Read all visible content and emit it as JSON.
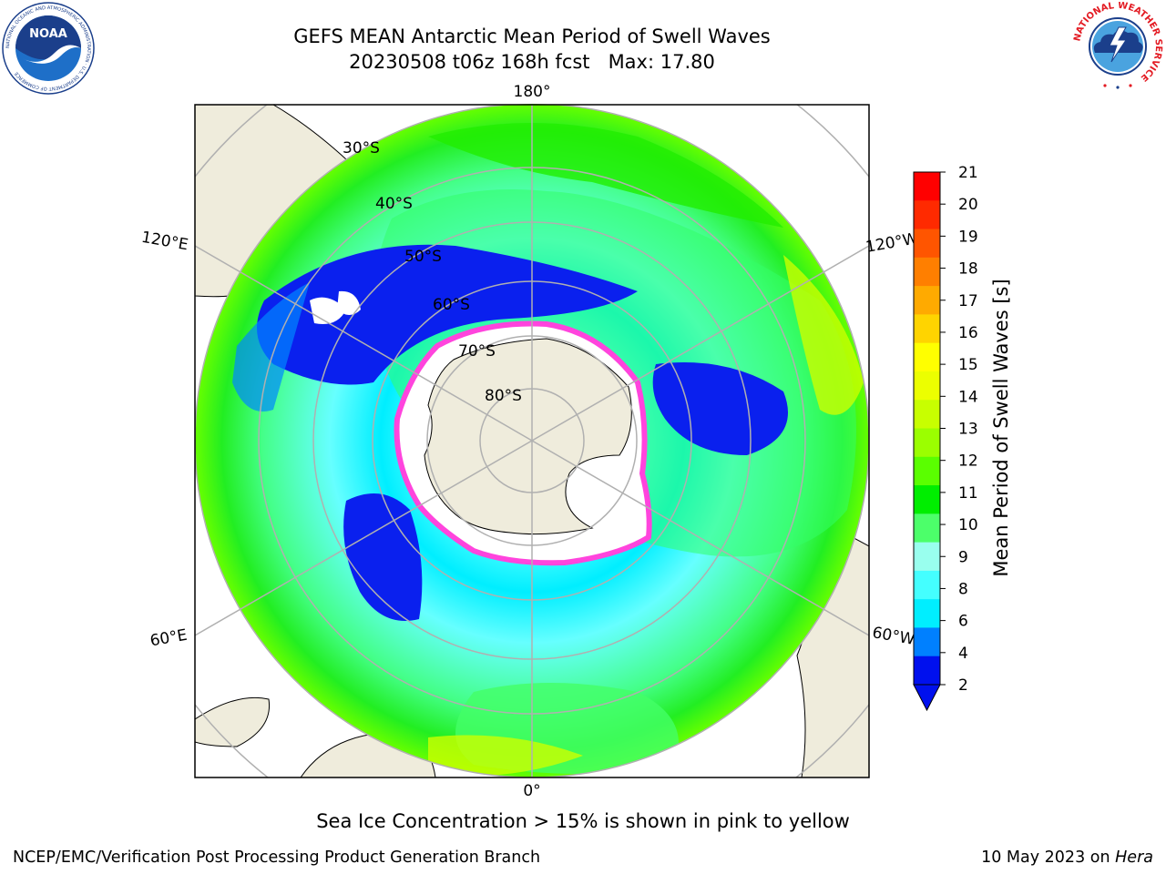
{
  "header": {
    "title_line1": "GEFS MEAN Antarctic Mean Period of Swell Waves",
    "title_line2": "20230508 t06z 168h fcst   Max: 17.80"
  },
  "logos": {
    "left": {
      "name": "noaa-logo",
      "text": "NOAA",
      "ring_text": "NATIONAL OCEANIC AND ATMOSPHERIC ADMINISTRATION · U.S. DEPARTMENT OF COMMERCE"
    },
    "right": {
      "name": "nws-logo",
      "ring_text": "NATIONAL WEATHER SERVICE"
    }
  },
  "map": {
    "projection": "south-polar-stereographic",
    "longitude_labels": {
      "top": "180°",
      "upper_left": "120°E",
      "upper_right": "120°W",
      "lower_left": "60°E",
      "lower_right": "60°W",
      "bottom": "0°"
    },
    "latitude_labels": [
      "30°S",
      "40°S",
      "50°S",
      "60°S",
      "70°S",
      "80°S"
    ]
  },
  "colorbar": {
    "label": "Mean Period of Swell Waves [s]",
    "ticks": [
      "21",
      "20",
      "19",
      "18",
      "17",
      "16",
      "15",
      "14",
      "13",
      "12",
      "11",
      "10",
      "9",
      "8",
      "6",
      "4",
      "2"
    ],
    "colors": [
      "#ff0000",
      "#ff2a00",
      "#ff5500",
      "#ff7f00",
      "#ffaa00",
      "#ffd400",
      "#ffff00",
      "#ecff00",
      "#c8ff00",
      "#9bff00",
      "#5aff00",
      "#00ee00",
      "#4cff6a",
      "#99ffee",
      "#44ffff",
      "#00eeff",
      "#0080ff",
      "#0010ee"
    ],
    "extend_color": "#0010ee"
  },
  "footer": {
    "note": "Sea Ice Concentration > 15% is shown in pink to yellow",
    "left": "NCEP/EMC/Verification Post Processing Product Generation Branch",
    "right_prefix": "10 May 2023 on ",
    "right_machine": "Hera"
  }
}
